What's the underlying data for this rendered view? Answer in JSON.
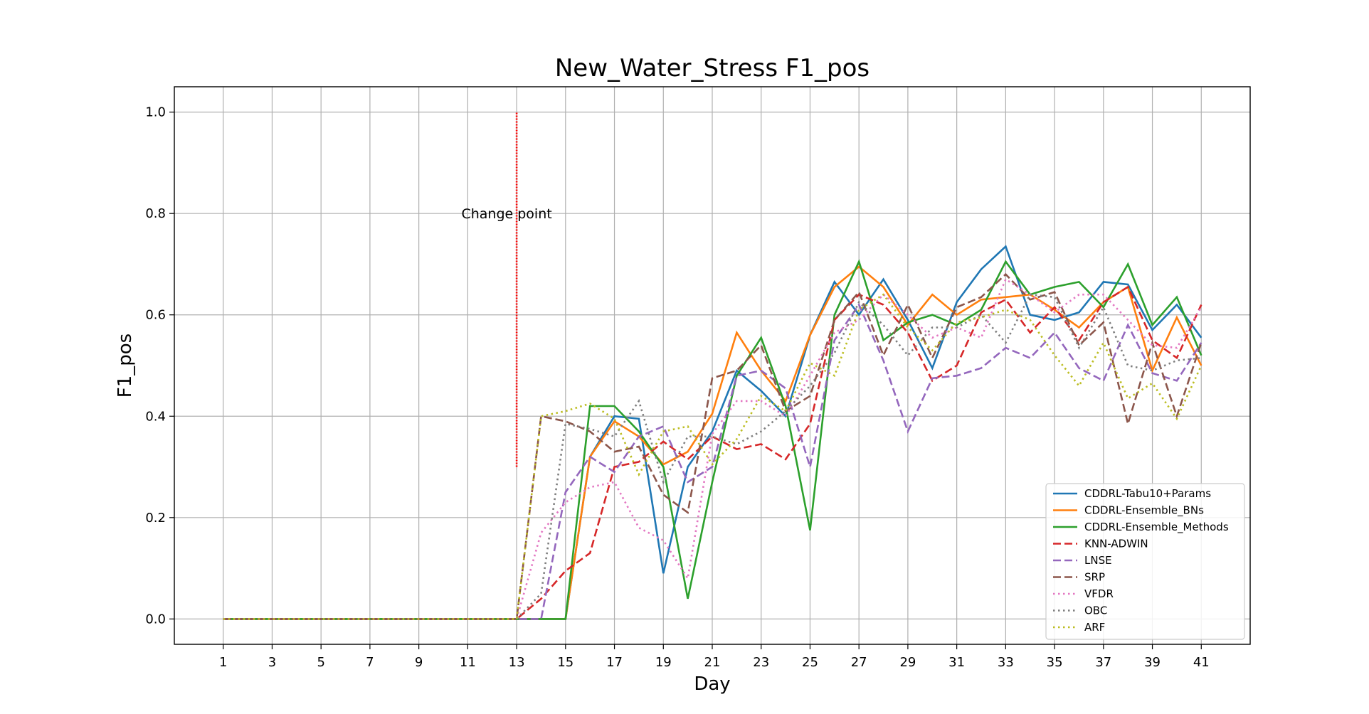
{
  "chart_data": {
    "type": "line",
    "title": "New_Water_Stress F1_pos",
    "xlabel": "Day",
    "ylabel": "F1_pos",
    "xlim": [
      -1,
      43
    ],
    "ylim": [
      -0.05,
      1.05
    ],
    "xticks": [
      1,
      3,
      5,
      7,
      9,
      11,
      13,
      15,
      17,
      19,
      21,
      23,
      25,
      27,
      29,
      31,
      33,
      35,
      37,
      39,
      41
    ],
    "xtick_labels": [
      "1",
      "3",
      "5",
      "7",
      "9",
      "11",
      "13",
      "15",
      "17",
      "19",
      "21",
      "23",
      "25",
      "27",
      "29",
      "31",
      "33",
      "35",
      "37",
      "39",
      "41"
    ],
    "yticks": [
      0.0,
      0.2,
      0.4,
      0.6,
      0.8,
      1.0
    ],
    "ytick_labels": [
      "0.0",
      "0.2",
      "0.4",
      "0.6",
      "0.8",
      "1.0"
    ],
    "grid": true,
    "legend_position": "lower-right",
    "x": [
      1,
      2,
      3,
      4,
      5,
      6,
      7,
      8,
      9,
      10,
      11,
      12,
      13,
      14,
      15,
      16,
      17,
      18,
      19,
      20,
      21,
      22,
      23,
      24,
      25,
      26,
      27,
      28,
      29,
      30,
      31,
      32,
      33,
      34,
      35,
      36,
      37,
      38,
      39,
      40,
      41
    ],
    "annotation": {
      "text": "Change point",
      "x": 13,
      "y_from": 0.3,
      "y_to": 1.0,
      "label_y": 0.8,
      "color": "#ff0000"
    },
    "series": [
      {
        "name": "CDDRL-Tabu10+Params",
        "color": "#1f77b4",
        "dash": "solid",
        "values": [
          0,
          0,
          0,
          0,
          0,
          0,
          0,
          0,
          0,
          0,
          0,
          0,
          0,
          0,
          0,
          0.32,
          0.4,
          0.395,
          0.09,
          0.3,
          0.37,
          0.49,
          0.45,
          0.4,
          0.56,
          0.665,
          0.6,
          0.67,
          0.59,
          0.495,
          0.625,
          0.69,
          0.735,
          0.6,
          0.59,
          0.605,
          0.665,
          0.66,
          0.57,
          0.62,
          0.555
        ]
      },
      {
        "name": "CDDRL-Ensemble_BNs",
        "color": "#ff7f0e",
        "dash": "solid",
        "values": [
          0,
          0,
          0,
          0,
          0,
          0,
          0,
          0,
          0,
          0,
          0,
          0,
          0,
          0,
          0,
          0.32,
          0.39,
          0.36,
          0.305,
          0.33,
          0.405,
          0.565,
          0.49,
          0.43,
          0.56,
          0.655,
          0.695,
          0.655,
          0.58,
          0.64,
          0.6,
          0.63,
          0.635,
          0.64,
          0.61,
          0.575,
          0.625,
          0.655,
          0.49,
          0.595,
          0.5
        ]
      },
      {
        "name": "CDDRL-Ensemble_Methods",
        "color": "#2ca02c",
        "dash": "solid",
        "values": [
          0,
          0,
          0,
          0,
          0,
          0,
          0,
          0,
          0,
          0,
          0,
          0,
          0,
          0,
          0,
          0.42,
          0.42,
          0.37,
          0.3,
          0.04,
          0.27,
          0.48,
          0.555,
          0.42,
          0.175,
          0.6,
          0.705,
          0.55,
          0.585,
          0.6,
          0.58,
          0.61,
          0.705,
          0.64,
          0.655,
          0.665,
          0.615,
          0.7,
          0.58,
          0.635,
          0.52
        ]
      },
      {
        "name": "KNN-ADWIN",
        "color": "#d62728",
        "dash": "dashed",
        "values": [
          0,
          0,
          0,
          0,
          0,
          0,
          0,
          0,
          0,
          0,
          0,
          0,
          0,
          0.04,
          0.095,
          0.13,
          0.3,
          0.31,
          0.35,
          0.315,
          0.36,
          0.335,
          0.345,
          0.315,
          0.385,
          0.59,
          0.64,
          0.62,
          0.565,
          0.47,
          0.5,
          0.605,
          0.63,
          0.565,
          0.615,
          0.55,
          0.625,
          0.655,
          0.55,
          0.515,
          0.62
        ]
      },
      {
        "name": "LNSE",
        "color": "#9467bd",
        "dash": "dashed",
        "values": [
          0,
          0,
          0,
          0,
          0,
          0,
          0,
          0,
          0,
          0,
          0,
          0,
          0,
          0,
          0.25,
          0.32,
          0.29,
          0.36,
          0.38,
          0.27,
          0.3,
          0.48,
          0.49,
          0.455,
          0.3,
          0.55,
          0.62,
          0.51,
          0.37,
          0.475,
          0.48,
          0.495,
          0.535,
          0.515,
          0.565,
          0.495,
          0.47,
          0.58,
          0.485,
          0.47,
          0.545
        ]
      },
      {
        "name": "SRP",
        "color": "#8c564b",
        "dash": "dashed",
        "values": [
          0,
          0,
          0,
          0,
          0,
          0,
          0,
          0,
          0,
          0,
          0,
          0,
          0,
          0.4,
          0.39,
          0.37,
          0.33,
          0.34,
          0.245,
          0.21,
          0.475,
          0.49,
          0.54,
          0.41,
          0.44,
          0.59,
          0.645,
          0.52,
          0.62,
          0.515,
          0.615,
          0.635,
          0.68,
          0.63,
          0.645,
          0.54,
          0.585,
          0.385,
          0.545,
          0.4,
          0.545
        ]
      },
      {
        "name": "VFDR",
        "color": "#e377c2",
        "dash": "dotted",
        "values": [
          0,
          0,
          0,
          0,
          0,
          0,
          0,
          0,
          0,
          0,
          0,
          0,
          0,
          0.17,
          0.23,
          0.26,
          0.27,
          0.18,
          0.155,
          0.08,
          0.365,
          0.43,
          0.43,
          0.4,
          0.48,
          0.565,
          0.59,
          0.64,
          0.6,
          0.555,
          0.575,
          0.555,
          0.67,
          0.64,
          0.605,
          0.64,
          0.64,
          0.59,
          0.54,
          0.535,
          0.615
        ]
      },
      {
        "name": "OBC",
        "color": "#7f7f7f",
        "dash": "dotted",
        "values": [
          0,
          0,
          0,
          0,
          0,
          0,
          0,
          0,
          0,
          0,
          0,
          0,
          0,
          0.05,
          0.385,
          0.375,
          0.36,
          0.43,
          0.27,
          0.36,
          0.36,
          0.345,
          0.37,
          0.41,
          0.46,
          0.525,
          0.625,
          0.58,
          0.52,
          0.575,
          0.575,
          0.6,
          0.545,
          0.64,
          0.635,
          0.535,
          0.615,
          0.5,
          0.49,
          0.51,
          0.515
        ]
      },
      {
        "name": "ARF",
        "color": "#bcbd22",
        "dash": "dotted",
        "values": [
          0,
          0,
          0,
          0,
          0,
          0,
          0,
          0,
          0,
          0,
          0,
          0,
          0,
          0.4,
          0.41,
          0.425,
          0.395,
          0.285,
          0.37,
          0.38,
          0.305,
          0.355,
          0.44,
          0.41,
          0.505,
          0.48,
          0.61,
          0.64,
          0.575,
          0.53,
          0.585,
          0.595,
          0.61,
          0.59,
          0.52,
          0.46,
          0.545,
          0.435,
          0.465,
          0.395,
          0.5
        ]
      }
    ]
  }
}
